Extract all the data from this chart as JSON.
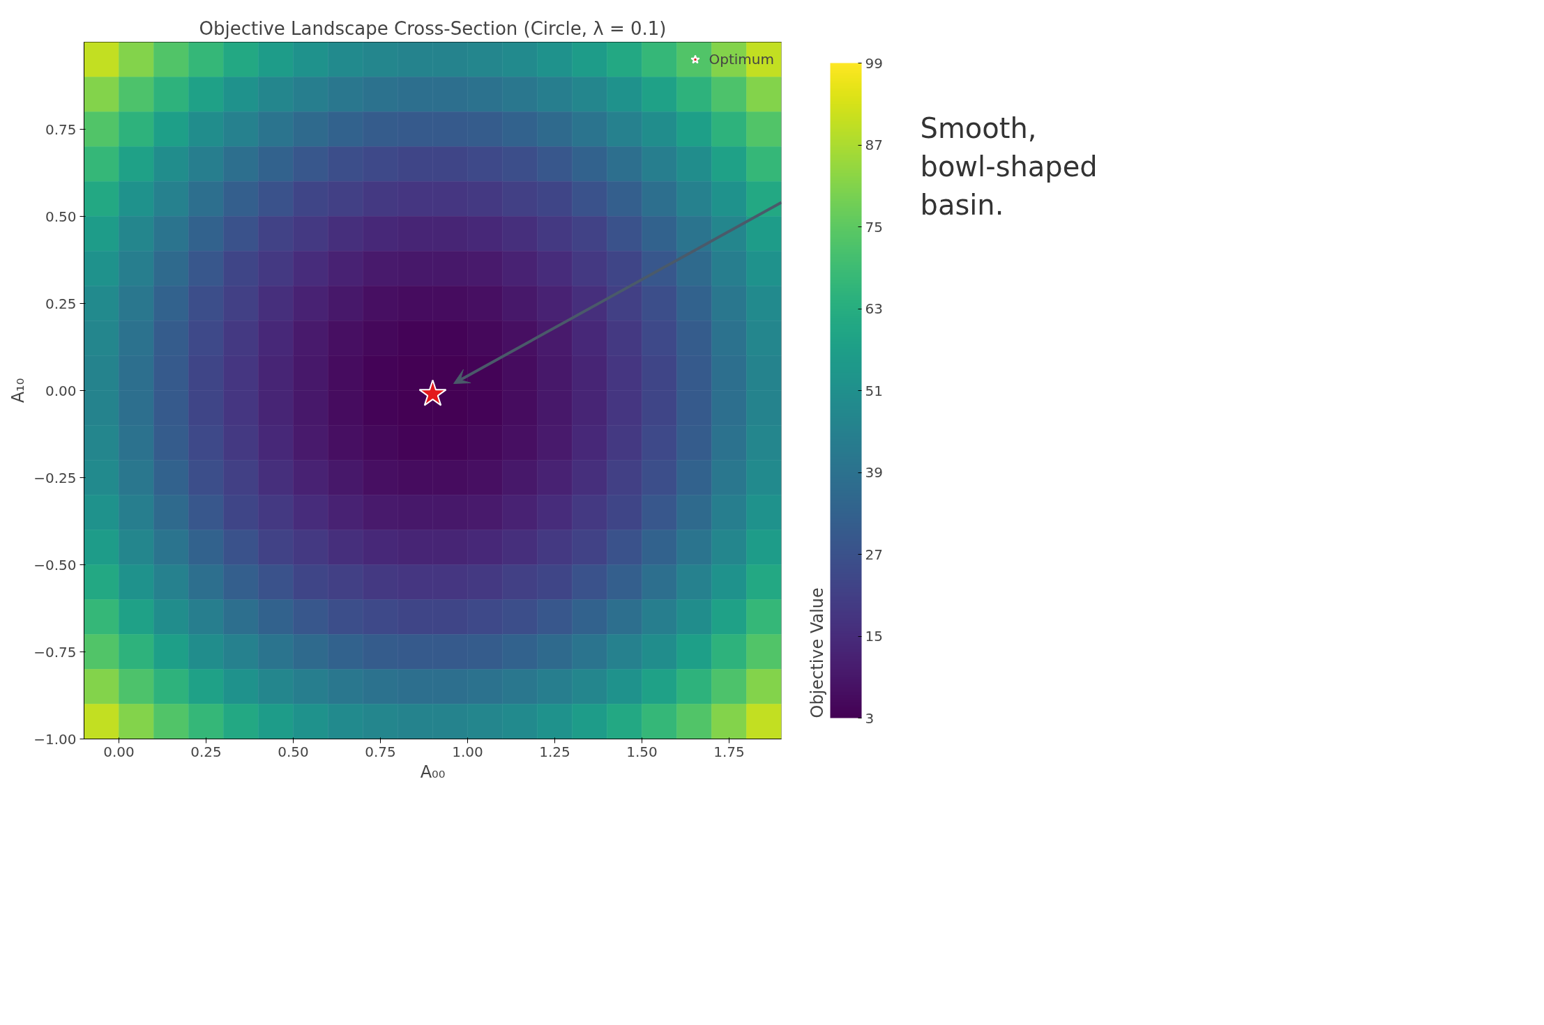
{
  "chart_data": {
    "type": "heatmap",
    "title": "Objective Landscape Cross-Section (Circle, λ = 0.1)",
    "xlabel": "A₀₀",
    "ylabel": "A₁₀",
    "clabel": "Objective Value",
    "xlim": [
      -0.1,
      1.9
    ],
    "ylim": [
      -1,
      1
    ],
    "xticks": [
      {
        "value": 0,
        "label": "0.00"
      },
      {
        "value": 0.25,
        "label": "0.25"
      },
      {
        "value": 0.5,
        "label": "0.50"
      },
      {
        "value": 0.75,
        "label": "0.75"
      },
      {
        "value": 1,
        "label": "1.00"
      },
      {
        "value": 1.25,
        "label": "1.25"
      },
      {
        "value": 1.5,
        "label": "1.50"
      },
      {
        "value": 1.75,
        "label": "1.75"
      }
    ],
    "yticks": [
      {
        "value": -1,
        "label": "−1.00"
      },
      {
        "value": -0.75,
        "label": "−0.75"
      },
      {
        "value": -0.5,
        "label": "−0.50"
      },
      {
        "value": -0.25,
        "label": "−0.25"
      },
      {
        "value": 0,
        "label": "0.00"
      },
      {
        "value": 0.25,
        "label": "0.25"
      },
      {
        "value": 0.5,
        "label": "0.50"
      },
      {
        "value": 0.75,
        "label": "0.75"
      }
    ],
    "clim": [
      3,
      99
    ],
    "cticks": [
      3,
      15,
      27,
      39,
      51,
      63,
      75,
      87,
      99
    ],
    "cells": [
      [
        90,
        81,
        73,
        67,
        61,
        56,
        52,
        49,
        47,
        46,
        46,
        47,
        49,
        52,
        56,
        61,
        67,
        73,
        81,
        90
      ],
      [
        81,
        72,
        65,
        58,
        52,
        47,
        44,
        41,
        39,
        38,
        38,
        39,
        41,
        44,
        47,
        52,
        58,
        65,
        72,
        81
      ],
      [
        73,
        65,
        57,
        50,
        45,
        40,
        36,
        33,
        31,
        30,
        30,
        31,
        33,
        36,
        40,
        45,
        50,
        57,
        65,
        73
      ],
      [
        67,
        58,
        50,
        44,
        38,
        33,
        29,
        26,
        24,
        23,
        23,
        24,
        26,
        29,
        33,
        38,
        44,
        50,
        58,
        67
      ],
      [
        61,
        52,
        45,
        38,
        32,
        27,
        23,
        21,
        19,
        18,
        18,
        19,
        21,
        23,
        27,
        32,
        38,
        45,
        52,
        61
      ],
      [
        56,
        47,
        40,
        33,
        27,
        22,
        19,
        16,
        14,
        13,
        13,
        14,
        16,
        19,
        22,
        27,
        33,
        40,
        47,
        56
      ],
      [
        52,
        44,
        36,
        29,
        23,
        19,
        15,
        12,
        10,
        9,
        9,
        10,
        12,
        15,
        19,
        23,
        29,
        36,
        44,
        52
      ],
      [
        49,
        41,
        33,
        26,
        21,
        16,
        12,
        9,
        7,
        6,
        6,
        7,
        9,
        12,
        16,
        21,
        26,
        33,
        41,
        49
      ],
      [
        47,
        39,
        31,
        24,
        19,
        14,
        10,
        7,
        5,
        4,
        4,
        5,
        7,
        10,
        14,
        19,
        24,
        31,
        39,
        47
      ],
      [
        46,
        38,
        30,
        23,
        18,
        13,
        9,
        6,
        4,
        3,
        3,
        4,
        6,
        9,
        13,
        18,
        23,
        30,
        38,
        46
      ],
      [
        46,
        38,
        30,
        23,
        18,
        13,
        9,
        6,
        4,
        3,
        3,
        4,
        6,
        9,
        13,
        18,
        23,
        30,
        38,
        46
      ],
      [
        47,
        39,
        31,
        24,
        19,
        14,
        10,
        7,
        5,
        4,
        4,
        5,
        7,
        10,
        14,
        19,
        24,
        31,
        39,
        47
      ],
      [
        49,
        41,
        33,
        26,
        21,
        16,
        12,
        9,
        7,
        6,
        6,
        7,
        9,
        12,
        16,
        21,
        26,
        33,
        41,
        49
      ],
      [
        52,
        44,
        36,
        29,
        23,
        19,
        15,
        12,
        10,
        9,
        9,
        10,
        12,
        15,
        19,
        23,
        29,
        36,
        44,
        52
      ],
      [
        56,
        47,
        40,
        33,
        27,
        22,
        19,
        16,
        14,
        13,
        13,
        14,
        16,
        19,
        22,
        27,
        33,
        40,
        47,
        56
      ],
      [
        61,
        52,
        45,
        38,
        32,
        27,
        23,
        21,
        19,
        18,
        18,
        19,
        21,
        23,
        27,
        32,
        38,
        45,
        52,
        61
      ],
      [
        67,
        58,
        50,
        44,
        38,
        33,
        29,
        26,
        24,
        23,
        23,
        24,
        26,
        29,
        33,
        38,
        44,
        50,
        58,
        67
      ],
      [
        73,
        65,
        57,
        50,
        45,
        40,
        36,
        33,
        31,
        30,
        30,
        31,
        33,
        36,
        40,
        45,
        50,
        57,
        65,
        73
      ],
      [
        81,
        72,
        65,
        58,
        52,
        47,
        44,
        41,
        39,
        38,
        38,
        39,
        41,
        44,
        47,
        52,
        58,
        65,
        72,
        81
      ],
      [
        90,
        81,
        73,
        67,
        61,
        56,
        52,
        49,
        47,
        46,
        46,
        47,
        49,
        52,
        56,
        61,
        67,
        73,
        81,
        90
      ]
    ],
    "series": [
      {
        "name": "Optimum",
        "type": "scatter",
        "marker": "star",
        "color": "#e31a1c",
        "x": [
          0.9
        ],
        "values": [
          -0.01
        ]
      }
    ],
    "legend": "top right",
    "annotations": [
      "Smooth,\nbowl-shaped\nbasin."
    ]
  }
}
